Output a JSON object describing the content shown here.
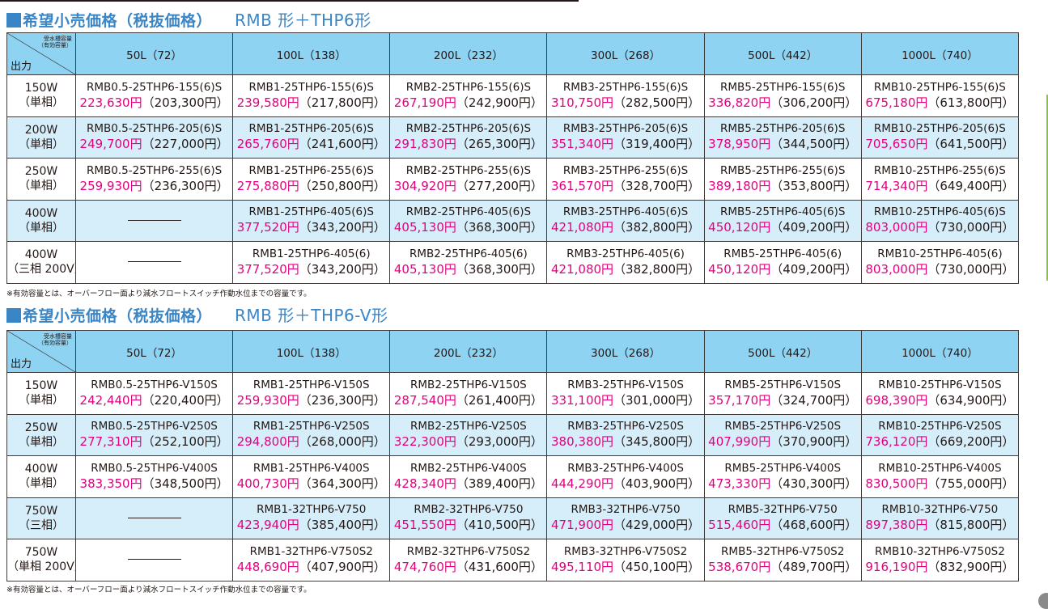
{
  "sections": [
    {
      "title_main": "希望小売価格（税抜価格）",
      "title_sub": "RMB 形＋THP6形",
      "corner_top_line1": "受水槽容量",
      "corner_top_line2": "（有効容量）",
      "corner_bottom": "出力",
      "columns": [
        "50L（72）",
        "100L（138）",
        "200L（232）",
        "300L（268）",
        "500L（442）",
        "1000L（740）"
      ],
      "rows": [
        {
          "label1": "150W",
          "label2": "（単相）",
          "cells": [
            {
              "model": "RMB0.5-25THP6-155(6)S",
              "price": "223,630円",
              "net": "（203,300円）"
            },
            {
              "model": "RMB1-25THP6-155(6)S",
              "price": "239,580円",
              "net": "（217,800円）"
            },
            {
              "model": "RMB2-25THP6-155(6)S",
              "price": "267,190円",
              "net": "（242,900円）"
            },
            {
              "model": "RMB3-25THP6-155(6)S",
              "price": "310,750円",
              "net": "（282,500円）"
            },
            {
              "model": "RMB5-25THP6-155(6)S",
              "price": "336,820円",
              "net": "（306,200円）"
            },
            {
              "model": "RMB10-25THP6-155(6)S",
              "price": "675,180円",
              "net": "（613,800円）"
            }
          ]
        },
        {
          "label1": "200W",
          "label2": "（単相）",
          "cells": [
            {
              "model": "RMB0.5-25THP6-205(6)S",
              "price": "249,700円",
              "net": "（227,000円）"
            },
            {
              "model": "RMB1-25THP6-205(6)S",
              "price": "265,760円",
              "net": "（241,600円）"
            },
            {
              "model": "RMB2-25THP6-205(6)S",
              "price": "291,830円",
              "net": "（265,300円）"
            },
            {
              "model": "RMB3-25THP6-205(6)S",
              "price": "351,340円",
              "net": "（319,400円）"
            },
            {
              "model": "RMB5-25THP6-205(6)S",
              "price": "378,950円",
              "net": "（344,500円）"
            },
            {
              "model": "RMB10-25THP6-205(6)S",
              "price": "705,650円",
              "net": "（641,500円）"
            }
          ]
        },
        {
          "label1": "250W",
          "label2": "（単相）",
          "cells": [
            {
              "model": "RMB0.5-25THP6-255(6)S",
              "price": "259,930円",
              "net": "（236,300円）"
            },
            {
              "model": "RMB1-25THP6-255(6)S",
              "price": "275,880円",
              "net": "（250,800円）"
            },
            {
              "model": "RMB2-25THP6-255(6)S",
              "price": "304,920円",
              "net": "（277,200円）"
            },
            {
              "model": "RMB3-25THP6-255(6)S",
              "price": "361,570円",
              "net": "（328,700円）"
            },
            {
              "model": "RMB5-25THP6-255(6)S",
              "price": "389,180円",
              "net": "（353,800円）"
            },
            {
              "model": "RMB10-25THP6-255(6)S",
              "price": "714,340円",
              "net": "（649,400円）"
            }
          ]
        },
        {
          "label1": "400W",
          "label2": "（単相）",
          "cells": [
            null,
            {
              "model": "RMB1-25THP6-405(6)S",
              "price": "377,520円",
              "net": "（343,200円）"
            },
            {
              "model": "RMB2-25THP6-405(6)S",
              "price": "405,130円",
              "net": "（368,300円）"
            },
            {
              "model": "RMB3-25THP6-405(6)S",
              "price": "421,080円",
              "net": "（382,800円）"
            },
            {
              "model": "RMB5-25THP6-405(6)S",
              "price": "450,120円",
              "net": "（409,200円）"
            },
            {
              "model": "RMB10-25THP6-405(6)S",
              "price": "803,000円",
              "net": "（730,000円）"
            }
          ]
        },
        {
          "label1": "400W",
          "label2": "（三相 200V）",
          "cells": [
            null,
            {
              "model": "RMB1-25THP6-405(6)",
              "price": "377,520円",
              "net": "（343,200円）"
            },
            {
              "model": "RMB2-25THP6-405(6)",
              "price": "405,130円",
              "net": "（368,300円）"
            },
            {
              "model": "RMB3-25THP6-405(6)",
              "price": "421,080円",
              "net": "（382,800円）"
            },
            {
              "model": "RMB5-25THP6-405(6)",
              "price": "450,120円",
              "net": "（409,200円）"
            },
            {
              "model": "RMB10-25THP6-405(6)",
              "price": "803,000円",
              "net": "（730,000円）"
            }
          ]
        }
      ],
      "note": "※有効容量とは、オーバーフロー面より減水フロートスイッチ作動水位までの容量です。"
    },
    {
      "title_main": "希望小売価格（税抜価格）",
      "title_sub": "RMB 形＋THP6-V形",
      "corner_top_line1": "受水槽容量",
      "corner_top_line2": "（有効容量）",
      "corner_bottom": "出力",
      "columns": [
        "50L（72）",
        "100L（138）",
        "200L（232）",
        "300L（268）",
        "500L（442）",
        "1000L（740）"
      ],
      "rows": [
        {
          "label1": "150W",
          "label2": "（単相）",
          "cells": [
            {
              "model": "RMB0.5-25THP6-V150S",
              "price": "242,440円",
              "net": "（220,400円）"
            },
            {
              "model": "RMB1-25THP6-V150S",
              "price": "259,930円",
              "net": "（236,300円）"
            },
            {
              "model": "RMB2-25THP6-V150S",
              "price": "287,540円",
              "net": "（261,400円）"
            },
            {
              "model": "RMB3-25THP6-V150S",
              "price": "331,100円",
              "net": "（301,000円）"
            },
            {
              "model": "RMB5-25THP6-V150S",
              "price": "357,170円",
              "net": "（324,700円）"
            },
            {
              "model": "RMB10-25THP6-V150S",
              "price": "698,390円",
              "net": "（634,900円）"
            }
          ]
        },
        {
          "label1": "250W",
          "label2": "（単相）",
          "cells": [
            {
              "model": "RMB0.5-25THP6-V250S",
              "price": "277,310円",
              "net": "（252,100円）"
            },
            {
              "model": "RMB1-25THP6-V250S",
              "price": "294,800円",
              "net": "（268,000円）"
            },
            {
              "model": "RMB2-25THP6-V250S",
              "price": "322,300円",
              "net": "（293,000円）"
            },
            {
              "model": "RMB3-25THP6-V250S",
              "price": "380,380円",
              "net": "（345,800円）"
            },
            {
              "model": "RMB5-25THP6-V250S",
              "price": "407,990円",
              "net": "（370,900円）"
            },
            {
              "model": "RMB10-25THP6-V250S",
              "price": "736,120円",
              "net": "（669,200円）"
            }
          ]
        },
        {
          "label1": "400W",
          "label2": "（単相）",
          "cells": [
            {
              "model": "RMB0.5-25THP6-V400S",
              "price": "383,350円",
              "net": "（348,500円）"
            },
            {
              "model": "RMB1-25THP6-V400S",
              "price": "400,730円",
              "net": "（364,300円）"
            },
            {
              "model": "RMB2-25THP6-V400S",
              "price": "428,340円",
              "net": "（389,400円）"
            },
            {
              "model": "RMB3-25THP6-V400S",
              "price": "444,290円",
              "net": "（403,900円）"
            },
            {
              "model": "RMB5-25THP6-V400S",
              "price": "473,330円",
              "net": "（430,300円）"
            },
            {
              "model": "RMB10-25THP6-V400S",
              "price": "830,500円",
              "net": "（755,000円）"
            }
          ]
        },
        {
          "label1": "750W",
          "label2": "（三相）",
          "cells": [
            null,
            {
              "model": "RMB1-32THP6-V750",
              "price": "423,940円",
              "net": "（385,400円）"
            },
            {
              "model": "RMB2-32THP6-V750",
              "price": "451,550円",
              "net": "（410,500円）"
            },
            {
              "model": "RMB3-32THP6-V750",
              "price": "471,900円",
              "net": "（429,000円）"
            },
            {
              "model": "RMB5-32THP6-V750",
              "price": "515,460円",
              "net": "（468,600円）"
            },
            {
              "model": "RMB10-32THP6-V750",
              "price": "897,380円",
              "net": "（815,800円）"
            }
          ]
        },
        {
          "label1": "750W",
          "label2": "（単相 200V）",
          "cells": [
            null,
            {
              "model": "RMB1-32THP6-V750S2",
              "price": "448,690円",
              "net": "（407,900円）"
            },
            {
              "model": "RMB2-32THP6-V750S2",
              "price": "474,760円",
              "net": "（431,600円）"
            },
            {
              "model": "RMB3-32THP6-V750S2",
              "price": "495,110円",
              "net": "（450,100円）"
            },
            {
              "model": "RMB5-32THP6-V750S2",
              "price": "538,670円",
              "net": "（489,700円）"
            },
            {
              "model": "RMB10-32THP6-V750S2",
              "price": "916,190円",
              "net": "（832,900円）"
            }
          ]
        }
      ],
      "note": "※有効容量とは、オーバーフロー面より減水フロートスイッチ作動水位までの容量です。"
    }
  ],
  "colors": {
    "title": "#3a85c5",
    "header_bg": "#8fd3f3",
    "alt_row_bg": "#d6eefa",
    "price": "#e4007f",
    "side_bar": "#8cc63f"
  }
}
